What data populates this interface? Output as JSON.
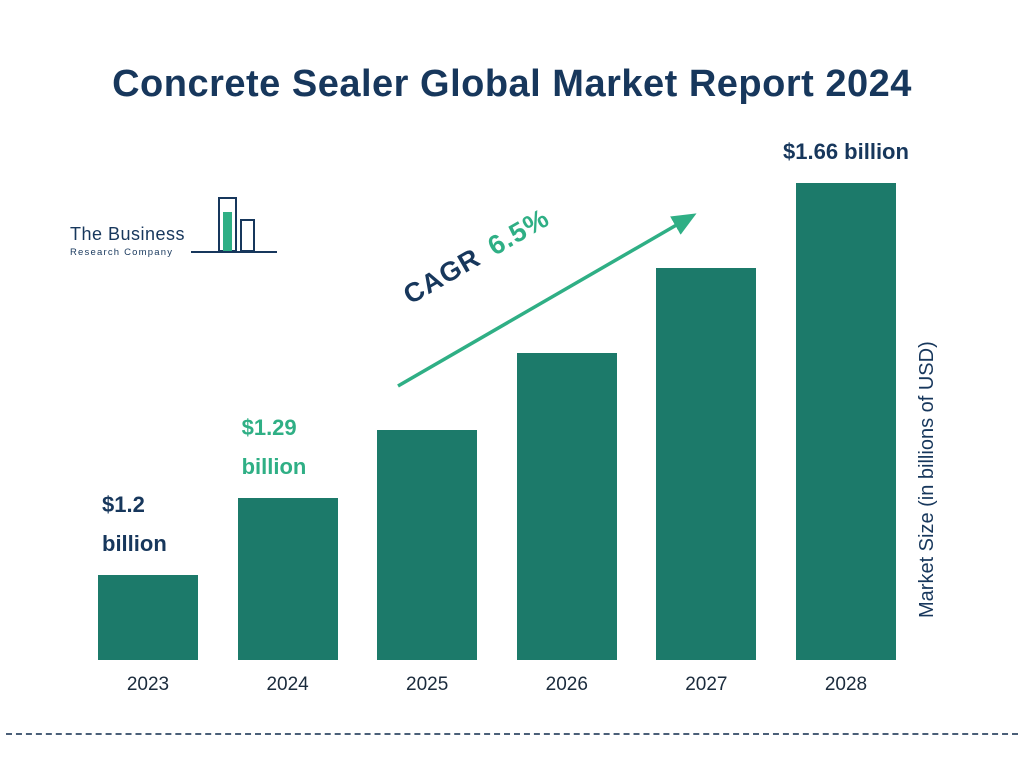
{
  "title": "Concrete Sealer Global Market Report 2024",
  "logo": {
    "line1": "The Business",
    "line2": "Research Company"
  },
  "colors": {
    "bar": "#1C7A6A",
    "navy": "#17375C",
    "green": "#2FAF85",
    "year_label": "#1B2B3C",
    "divider": "#4A5F78"
  },
  "chart_data": {
    "type": "bar",
    "title": "Concrete Sealer Global Market Report 2024",
    "categories": [
      "2023",
      "2024",
      "2025",
      "2026",
      "2027",
      "2028"
    ],
    "values": [
      1.2,
      1.29,
      1.37,
      1.46,
      1.56,
      1.66
    ],
    "unit": "billions of USD",
    "xlabel": "",
    "ylabel": "Market Size (in billions of USD)",
    "ylim": [
      1.1,
      1.7
    ],
    "grid": false,
    "legend": "none",
    "bar_labels": [
      {
        "index": 0,
        "lines": [
          "$1.2",
          "billion"
        ],
        "color": "#17375C",
        "align": "left"
      },
      {
        "index": 1,
        "lines": [
          "$1.29",
          "billion"
        ],
        "color": "#2FAF85",
        "align": "left"
      },
      {
        "index": 5,
        "lines": [
          "$1.66 billion"
        ],
        "color": "#17375C",
        "align": "center"
      }
    ],
    "annotation": {
      "prefix": "CAGR",
      "value": "6.5%"
    }
  }
}
